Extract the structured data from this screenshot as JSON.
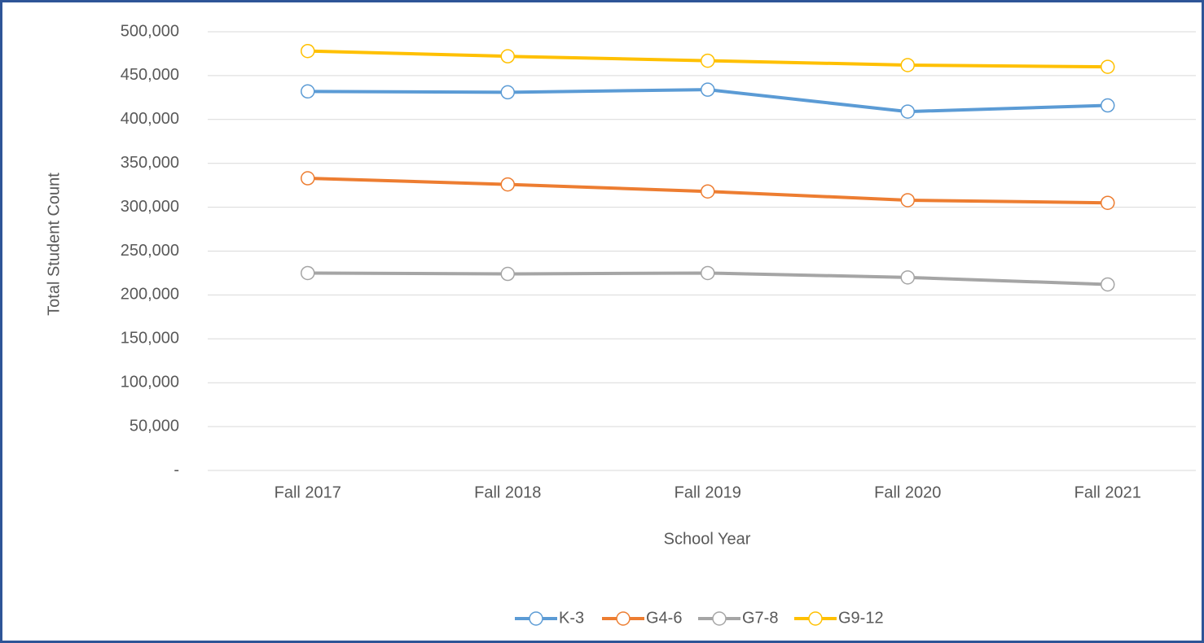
{
  "chart_data": {
    "type": "line",
    "xlabel": "School Year",
    "ylabel": "Total Student Count",
    "categories": [
      "Fall 2017",
      "Fall 2018",
      "Fall 2019",
      "Fall 2020",
      "Fall 2021"
    ],
    "series": [
      {
        "name": "K-3",
        "color": "#5b9bd5",
        "values": [
          432000,
          431000,
          434000,
          409000,
          416000
        ]
      },
      {
        "name": "G4-6",
        "color": "#ed7d31",
        "values": [
          333000,
          326000,
          318000,
          308000,
          305000
        ]
      },
      {
        "name": "G7-8",
        "color": "#a5a5a5",
        "values": [
          225000,
          224000,
          225000,
          220000,
          212000
        ]
      },
      {
        "name": "G9-12",
        "color": "#ffc000",
        "values": [
          478000,
          472000,
          467000,
          462000,
          460000
        ]
      }
    ],
    "ylim": [
      0,
      500000
    ],
    "yticks": [
      {
        "value": 0,
        "label": "-"
      },
      {
        "value": 50000,
        "label": "50,000"
      },
      {
        "value": 100000,
        "label": "100,000"
      },
      {
        "value": 150000,
        "label": "150,000"
      },
      {
        "value": 200000,
        "label": "200,000"
      },
      {
        "value": 250000,
        "label": "250,000"
      },
      {
        "value": 300000,
        "label": "300,000"
      },
      {
        "value": 350000,
        "label": "350,000"
      },
      {
        "value": 400000,
        "label": "400,000"
      },
      {
        "value": 450000,
        "label": "450,000"
      },
      {
        "value": 500000,
        "label": "500,000"
      }
    ],
    "grid": true,
    "legend": "bottom"
  }
}
